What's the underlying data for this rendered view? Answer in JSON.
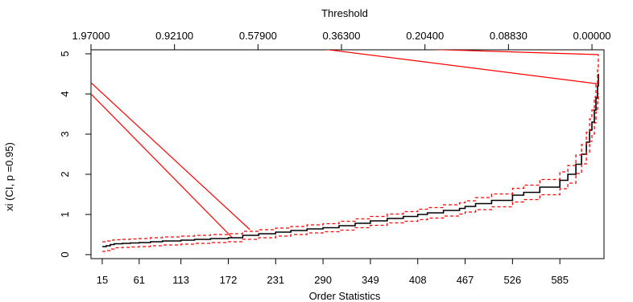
{
  "chart_data": {
    "type": "line",
    "xlabel": "Order Statistics",
    "ylabel": "xi (CI, p =0.95)",
    "top_axis_label": "Threshold",
    "xlim": [
      1,
      640
    ],
    "ylim": [
      -0.1,
      5.1
    ],
    "x_ticks": [
      15,
      61,
      113,
      172,
      231,
      290,
      349,
      408,
      467,
      526,
      585
    ],
    "y_ticks": [
      0,
      1,
      2,
      3,
      4,
      5
    ],
    "top_ticks": [
      {
        "at": 1,
        "label": "1.97000"
      },
      {
        "at": 105,
        "label": "0.92100"
      },
      {
        "at": 209,
        "label": "0.57900"
      },
      {
        "at": 313,
        "label": "0.36300"
      },
      {
        "at": 417,
        "label": "0.20400"
      },
      {
        "at": 521,
        "label": "0.08830"
      },
      {
        "at": 625,
        "label": "0.00000"
      }
    ],
    "grid": false,
    "legend": "none",
    "colors": {
      "estimate": "#000000",
      "ci": "#ff0000",
      "lines": "#ff0000"
    },
    "series": [
      {
        "role": "estimate",
        "x": [
          15,
          20,
          25,
          30,
          40,
          50,
          61,
          75,
          90,
          113,
          130,
          150,
          172,
          190,
          210,
          231,
          250,
          270,
          290,
          310,
          330,
          349,
          370,
          390,
          408,
          420,
          440,
          460,
          467,
          480,
          500,
          526,
          540,
          560,
          585,
          595,
          605,
          612,
          618,
          622,
          625,
          628,
          630,
          632,
          633
        ],
        "y": [
          0.2,
          0.22,
          0.25,
          0.27,
          0.28,
          0.29,
          0.3,
          0.32,
          0.34,
          0.36,
          0.38,
          0.4,
          0.42,
          0.48,
          0.52,
          0.56,
          0.6,
          0.64,
          0.67,
          0.72,
          0.78,
          0.84,
          0.9,
          0.95,
          1.0,
          1.04,
          1.1,
          1.15,
          1.2,
          1.27,
          1.35,
          1.48,
          1.55,
          1.68,
          1.85,
          2.0,
          2.25,
          2.5,
          2.8,
          3.1,
          3.3,
          3.6,
          3.9,
          4.2,
          4.5
        ]
      },
      {
        "role": "ci_upper",
        "x": [
          15,
          20,
          25,
          30,
          40,
          50,
          61,
          75,
          90,
          113,
          130,
          150,
          172,
          190,
          210,
          231,
          250,
          270,
          290,
          310,
          330,
          349,
          370,
          390,
          408,
          420,
          440,
          460,
          467,
          480,
          500,
          526,
          540,
          560,
          585,
          595,
          605,
          612,
          618,
          622,
          625,
          628,
          630,
          632,
          633
        ],
        "y": [
          0.32,
          0.34,
          0.36,
          0.37,
          0.38,
          0.39,
          0.4,
          0.42,
          0.44,
          0.46,
          0.48,
          0.5,
          0.52,
          0.58,
          0.62,
          0.66,
          0.7,
          0.74,
          0.77,
          0.83,
          0.89,
          0.95,
          1.01,
          1.07,
          1.13,
          1.17,
          1.24,
          1.29,
          1.34,
          1.42,
          1.51,
          1.65,
          1.73,
          1.87,
          2.06,
          2.22,
          2.48,
          2.74,
          3.05,
          3.38,
          3.6,
          3.92,
          4.25,
          4.6,
          4.98
        ]
      },
      {
        "role": "ci_lower",
        "x": [
          15,
          20,
          25,
          30,
          40,
          50,
          61,
          75,
          90,
          113,
          130,
          150,
          172,
          190,
          210,
          231,
          250,
          270,
          290,
          310,
          330,
          349,
          370,
          390,
          408,
          420,
          440,
          460,
          467,
          480,
          500,
          526,
          540,
          560,
          585,
          595,
          605,
          612,
          618,
          622,
          625,
          628,
          630,
          632,
          633
        ],
        "y": [
          0.08,
          0.1,
          0.14,
          0.17,
          0.18,
          0.19,
          0.2,
          0.22,
          0.24,
          0.26,
          0.28,
          0.3,
          0.32,
          0.38,
          0.42,
          0.46,
          0.5,
          0.54,
          0.57,
          0.61,
          0.67,
          0.73,
          0.79,
          0.83,
          0.87,
          0.91,
          0.96,
          1.01,
          1.06,
          1.12,
          1.19,
          1.31,
          1.37,
          1.49,
          1.64,
          1.78,
          2.02,
          2.26,
          2.55,
          2.82,
          3.0,
          3.28,
          3.55,
          3.8,
          4.02
        ]
      }
    ],
    "segments": [
      {
        "x1": 1,
        "y1": 4.28,
        "x2": 199,
        "y2": 0.62
      },
      {
        "x1": 1,
        "y1": 4.0,
        "x2": 177,
        "y2": 0.42
      },
      {
        "x1": 250,
        "y1": 5.22,
        "x2": 633,
        "y2": 4.98
      },
      {
        "x1": 250,
        "y1": 5.22,
        "x2": 633,
        "y2": 4.25
      }
    ]
  }
}
